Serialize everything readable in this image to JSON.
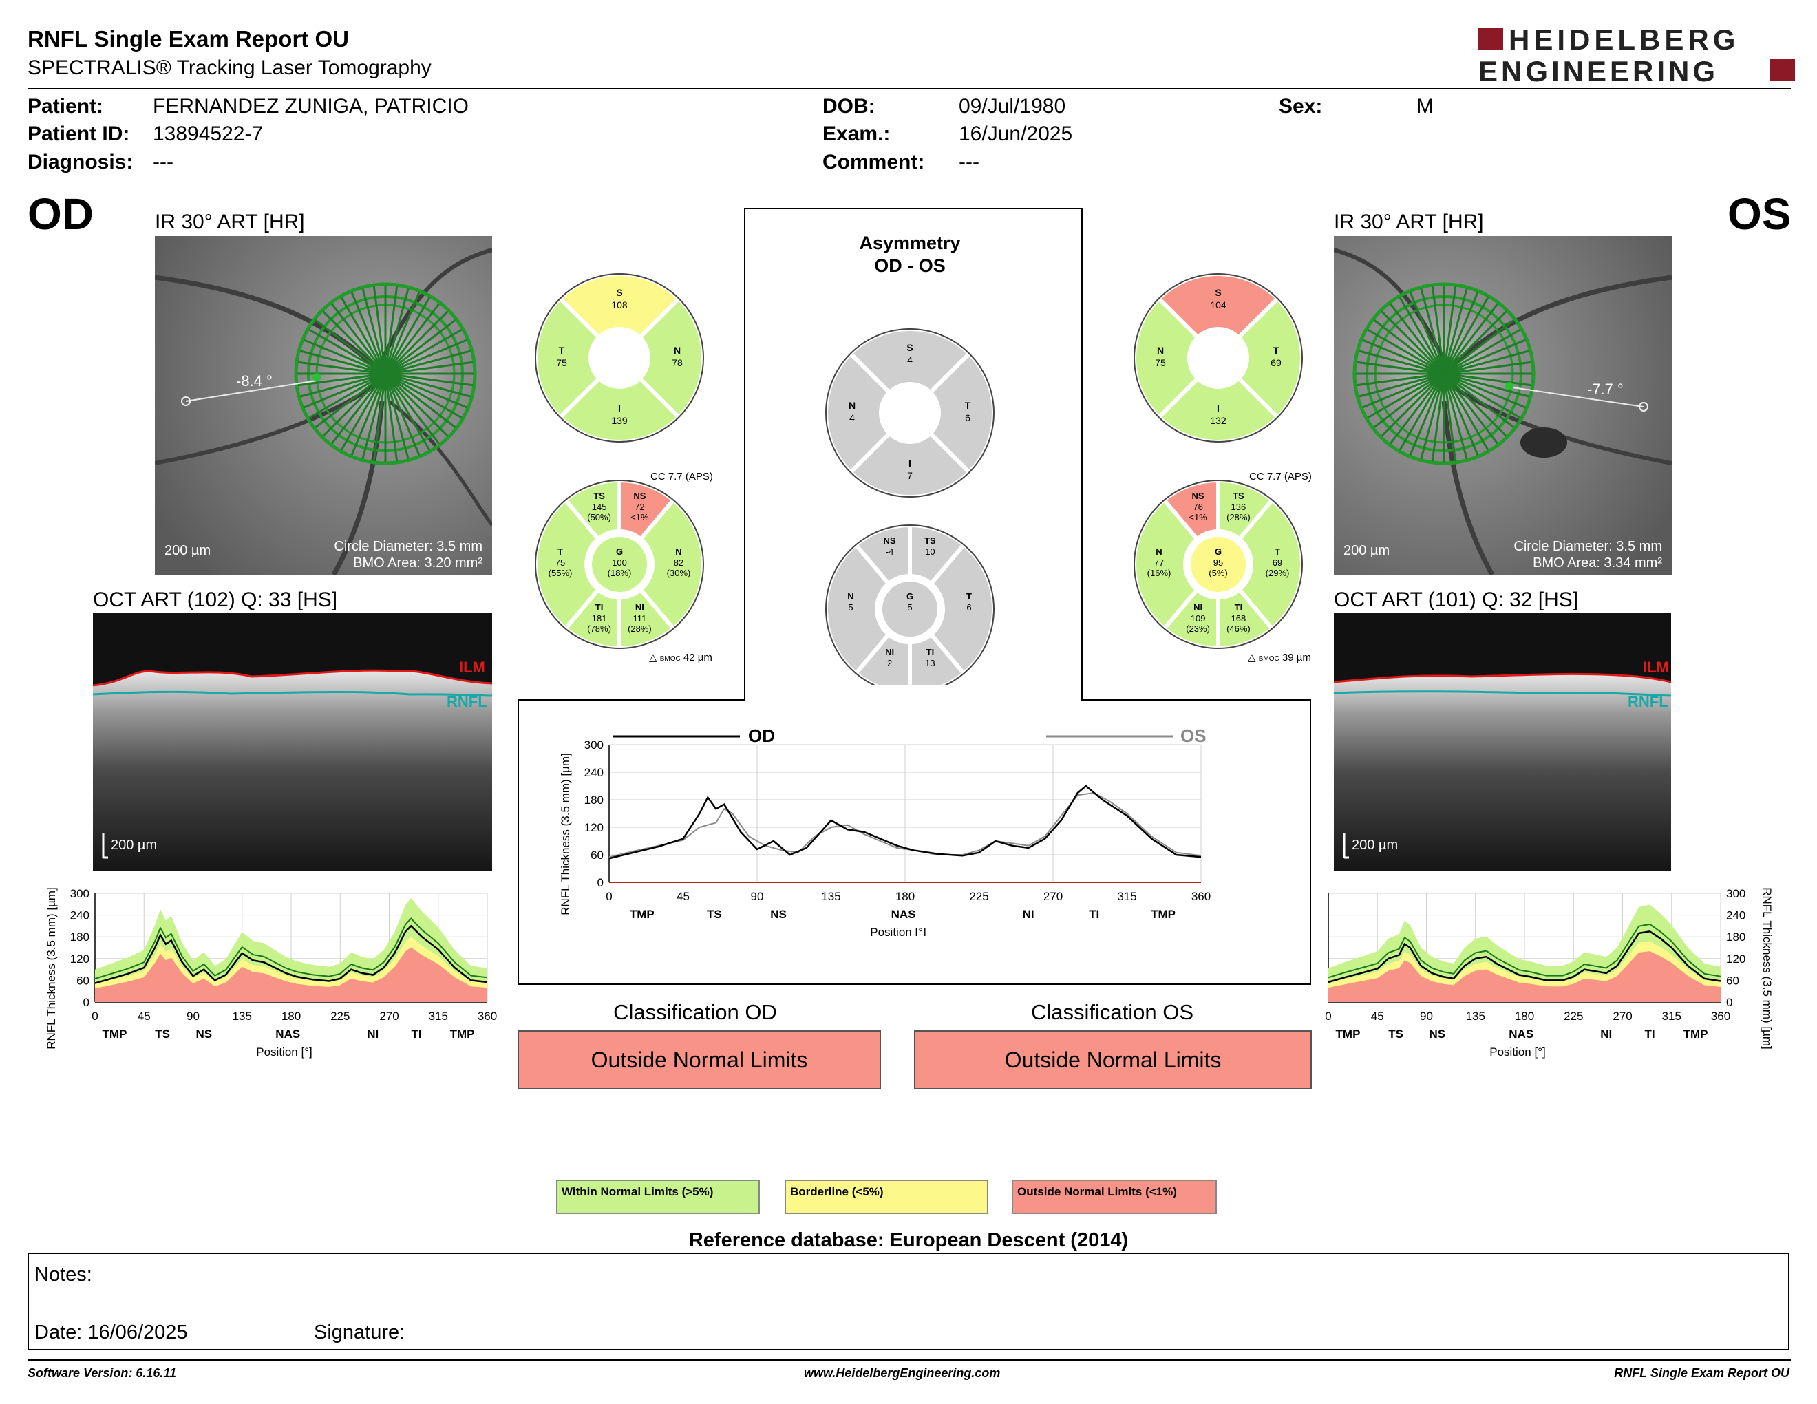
{
  "header": {
    "title": "RNFL Single Exam Report OU",
    "subtitle": "SPECTRALIS® Tracking Laser Tomography",
    "logo_line1": "HEIDELBERG",
    "logo_line2": "ENGINEERING",
    "logo_color": "#8b1a26"
  },
  "patient": {
    "patient_label": "Patient:",
    "patient_value": "FERNANDEZ ZUNIGA, PATRICIO",
    "id_label": "Patient ID:",
    "id_value": "13894522-7",
    "diagnosis_label": "Diagnosis:",
    "diagnosis_value": "---",
    "dob_label": "DOB:",
    "dob_value": "09/Jul/1980",
    "exam_label": "Exam.:",
    "exam_value": "16/Jun/2025",
    "comment_label": "Comment:",
    "comment_value": "---",
    "sex_label": "Sex:",
    "sex_value": "M"
  },
  "od": {
    "eye": "OD",
    "ir_title": "IR 30° ART [HR]",
    "angle": "-8.4 °",
    "scale": "200 µm",
    "circle_diameter": "Circle Diameter: 3.5 mm",
    "bmo_area": "BMO Area: 3.20 mm²",
    "oct_title": "OCT ART (102) Q: 33 [HS]",
    "oct_scale": "200 µm",
    "ilm": "ILM",
    "rnfl": "RNFL",
    "quad": {
      "S": "108",
      "T": "75",
      "N": "78",
      "I": "139"
    },
    "cc": "CC 7.7 (APS)",
    "sectors": {
      "TS": [
        "145",
        "(50%)"
      ],
      "NS": [
        "72",
        "<1%"
      ],
      "T": [
        "75",
        "(55%)"
      ],
      "G": [
        "100",
        "(18%)"
      ],
      "N": [
        "82",
        "(30%)"
      ],
      "TI": [
        "181",
        "(78%)"
      ],
      "NI": [
        "111",
        "(28%)"
      ]
    },
    "bmoc": "42 µm",
    "classification_title": "Classification OD",
    "classification": "Outside Normal Limits"
  },
  "os": {
    "eye": "OS",
    "ir_title": "IR 30° ART [HR]",
    "angle": "-7.7 °",
    "scale": "200 µm",
    "circle_diameter": "Circle Diameter: 3.5 mm",
    "bmo_area": "BMO Area: 3.34 mm²",
    "oct_title": "OCT ART (101) Q: 32 [HS]",
    "oct_scale": "200 µm",
    "ilm": "ILM",
    "rnfl": "RNFL",
    "quad": {
      "S": "104",
      "N": "75",
      "T": "69",
      "I": "132"
    },
    "cc": "CC 7.7 (APS)",
    "sectors": {
      "NS": [
        "76",
        "<1%"
      ],
      "TS": [
        "136",
        "(28%)"
      ],
      "N": [
        "77",
        "(16%)"
      ],
      "G": [
        "95",
        "(5%)"
      ],
      "T": [
        "69",
        "(29%)"
      ],
      "NI": [
        "109",
        "(23%)"
      ],
      "TI": [
        "168",
        "(46%)"
      ]
    },
    "bmoc": "39 µm",
    "classification_title": "Classification OS",
    "classification": "Outside Normal Limits"
  },
  "asymmetry": {
    "title1": "Asymmetry",
    "title2": "OD - OS",
    "quad": {
      "S": "4",
      "N": "4",
      "T": "6",
      "I": "7"
    },
    "sectors": {
      "NS": "-4",
      "TS": "10",
      "N": "5",
      "G": "5",
      "T": "6",
      "NI": "2",
      "TI": "13"
    }
  },
  "colors": {
    "green": "#c8f28c",
    "yellow": "#fcf88a",
    "red": "#f79487",
    "gray": "#cfcfcf"
  },
  "legend": {
    "within": "Within Normal Limits (>5%)",
    "borderline": "Borderline (<5%)",
    "outside": "Outside Normal Limits (<1%)"
  },
  "reference": "Reference database: European Descent (2014)",
  "notes": {
    "label": "Notes:",
    "date": "Date: 16/06/2025",
    "signature": "Signature:"
  },
  "footer": {
    "version": "Software Version: 6.16.11",
    "url": "www.HeidelbergEngineering.com",
    "report": "RNFL Single Exam Report OU"
  },
  "chart_data": [
    {
      "type": "line",
      "name_od": "OD",
      "name_os": "OS",
      "ylabel": "RNFL Thickness (3.5 mm) [µm]",
      "xlabel": "Position [°]",
      "xlim": [
        0,
        360
      ],
      "ylim": [
        0,
        300
      ],
      "x_ticks": [
        "0",
        "45",
        "90",
        "135",
        "180",
        "225",
        "270",
        "315",
        "360"
      ],
      "y_ticks": [
        "0",
        "60",
        "120",
        "180",
        "240",
        "300"
      ],
      "sector_labels": [
        "TMP",
        "TS",
        "NS",
        "NAS",
        "NI",
        "TI",
        "TMP"
      ],
      "sector_positions": [
        20,
        64,
        103,
        179,
        255,
        295,
        337
      ],
      "series": [
        {
          "name": "OD",
          "x": [
            0,
            15,
            30,
            45,
            55,
            60,
            65,
            70,
            80,
            90,
            100,
            110,
            120,
            130,
            135,
            145,
            155,
            165,
            175,
            185,
            200,
            215,
            225,
            235,
            245,
            255,
            265,
            275,
            285,
            290,
            300,
            315,
            330,
            345,
            360
          ],
          "y": [
            52,
            65,
            78,
            95,
            150,
            185,
            160,
            170,
            110,
            72,
            90,
            60,
            75,
            115,
            135,
            115,
            110,
            95,
            80,
            70,
            62,
            58,
            65,
            90,
            80,
            75,
            95,
            135,
            195,
            210,
            180,
            145,
            95,
            60,
            55
          ]
        },
        {
          "name": "OS",
          "x": [
            0,
            15,
            30,
            45,
            55,
            65,
            70,
            75,
            85,
            95,
            105,
            115,
            125,
            135,
            145,
            155,
            165,
            175,
            185,
            200,
            215,
            225,
            235,
            245,
            255,
            265,
            275,
            285,
            295,
            305,
            315,
            330,
            345,
            360
          ],
          "y": [
            55,
            68,
            80,
            92,
            120,
            130,
            160,
            150,
            100,
            80,
            70,
            65,
            100,
            120,
            125,
            105,
            90,
            75,
            70,
            60,
            60,
            70,
            90,
            85,
            80,
            100,
            145,
            190,
            195,
            175,
            150,
            100,
            65,
            58
          ]
        }
      ]
    },
    {
      "type": "area",
      "eye": "OD",
      "ylabel": "RNFL Thickness (3.5 mm) [µm]",
      "xlabel": "Position [°]",
      "xlim": [
        0,
        360
      ],
      "ylim": [
        0,
        300
      ],
      "x_ticks": [
        "0",
        "45",
        "90",
        "135",
        "180",
        "225",
        "270",
        "315",
        "360"
      ],
      "y_ticks": [
        "0",
        "60",
        "120",
        "180",
        "240",
        "300"
      ],
      "sector_labels": [
        "TMP",
        "TS",
        "NS",
        "NAS",
        "NI",
        "TI",
        "TMP"
      ],
      "sector_positions": [
        18,
        62,
        100,
        177,
        255,
        295,
        337
      ]
    },
    {
      "type": "area",
      "eye": "OS",
      "ylabel": "RNFL Thickness (3.5 mm) [µm]",
      "xlabel": "Position [°]",
      "xlim": [
        0,
        360
      ],
      "ylim": [
        0,
        300
      ],
      "x_ticks": [
        "0",
        "45",
        "90",
        "135",
        "180",
        "225",
        "270",
        "315",
        "360"
      ],
      "y_ticks": [
        "0",
        "60",
        "120",
        "180",
        "240",
        "300"
      ],
      "sector_labels": [
        "TMP",
        "TS",
        "NS",
        "NAS",
        "NI",
        "TI",
        "TMP"
      ],
      "sector_positions": [
        18,
        62,
        100,
        177,
        255,
        295,
        337
      ]
    }
  ]
}
